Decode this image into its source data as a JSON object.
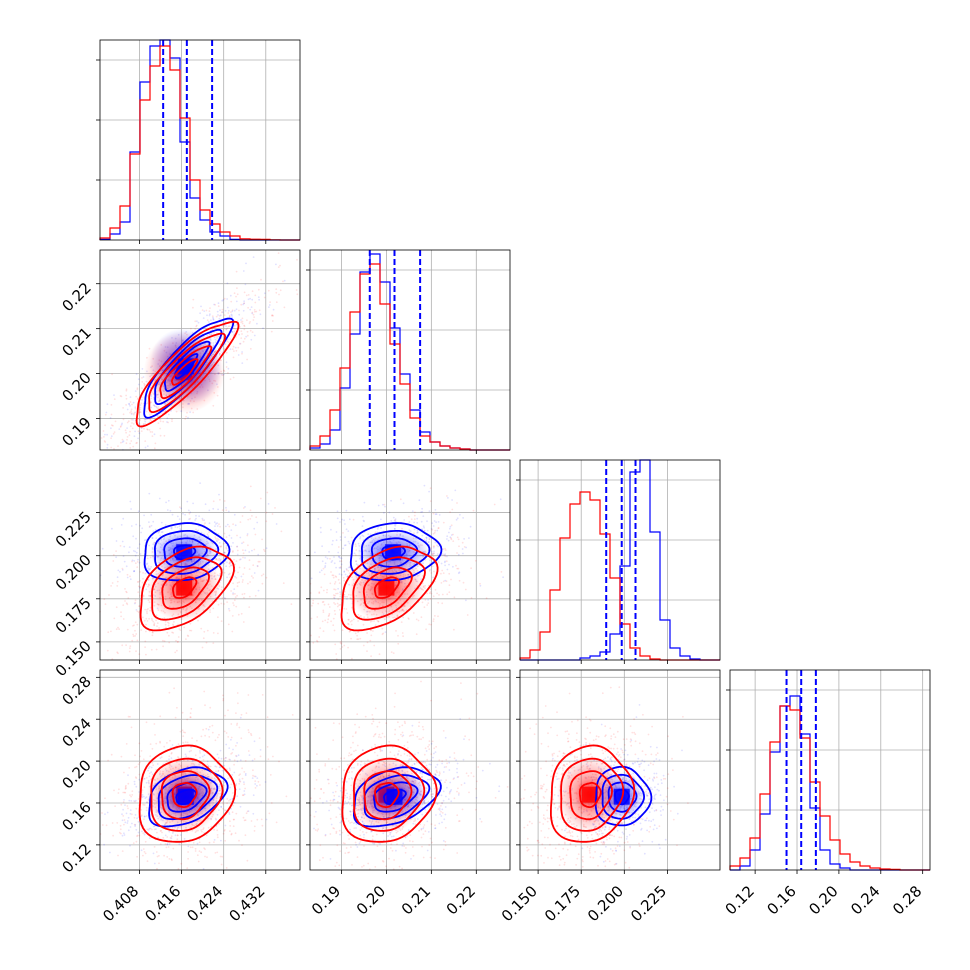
{
  "colors": {
    "blue": "#0000ff",
    "red": "#ff0000"
  },
  "chart_data": {
    "type": "corner",
    "title": "",
    "parameters": 4,
    "series": [
      {
        "color": "#0000ff"
      },
      {
        "color": "#ff0000"
      }
    ],
    "axes": [
      {
        "lim": [
          0.4005,
          0.4385
        ],
        "ticks": [
          0.408,
          0.416,
          0.424,
          0.432
        ],
        "tick_labels": [
          "0.408",
          "0.416",
          "0.424",
          "0.432"
        ]
      },
      {
        "lim": [
          0.183,
          0.2275
        ],
        "ticks": [
          0.19,
          0.2,
          0.21,
          0.22
        ],
        "tick_labels": [
          "0.19",
          "0.20",
          "0.21",
          "0.22"
        ]
      },
      {
        "lim": [
          0.1395,
          0.2555
        ],
        "ticks": [
          0.15,
          0.175,
          0.2,
          0.225
        ],
        "tick_labels": [
          "0.150",
          "0.175",
          "0.200",
          "0.225"
        ]
      },
      {
        "lim": [
          0.096,
          0.287
        ],
        "ticks": [
          0.12,
          0.16,
          0.2,
          0.24,
          0.28
        ],
        "tick_labels": [
          "0.12",
          "0.16",
          "0.20",
          "0.24",
          "0.28"
        ]
      }
    ],
    "marginals": [
      {
        "quantiles": [
          0.4125,
          0.417,
          0.4218
        ],
        "grid_ticks": [
          0.408,
          0.416,
          0.424,
          0.432
        ]
      },
      {
        "quantiles": [
          0.1963,
          0.2018,
          0.2075
        ],
        "grid_ticks": [
          0.19,
          0.2,
          0.21,
          0.22
        ]
      },
      {
        "quantiles": [
          0.1895,
          0.1985,
          0.2065
        ],
        "grid_ticks": [
          0.15,
          0.175,
          0.2,
          0.225
        ]
      },
      {
        "quantiles": [
          0.15,
          0.164,
          0.178
        ],
        "grid_ticks": [
          0.12,
          0.16,
          0.2,
          0.24,
          0.28
        ]
      }
    ],
    "histograms": [
      {
        "edges": [
          0.4005,
          0.4425
        ],
        "bins": 20,
        "blue": [
          0.003,
          0.03,
          0.09,
          0.44,
          0.79,
          0.97,
          1.0,
          0.91,
          0.49,
          0.21,
          0.1,
          0.04,
          0.02,
          0.003,
          0,
          0,
          0,
          0,
          0,
          0
        ],
        "red": [
          0.01,
          0.06,
          0.17,
          0.43,
          0.7,
          0.87,
          0.97,
          0.85,
          0.61,
          0.3,
          0.15,
          0.08,
          0.04,
          0.02,
          0.006,
          0.004,
          0.003,
          0.001,
          0,
          0
        ]
      },
      {
        "edges": [
          0.183,
          0.2275
        ],
        "bins": 20,
        "blue": [
          0.01,
          0.03,
          0.1,
          0.31,
          0.58,
          0.89,
          0.98,
          0.84,
          0.61,
          0.38,
          0.2,
          0.09,
          0.04,
          0.02,
          0.01,
          0.005,
          0,
          0,
          0,
          0
        ],
        "red": [
          0.02,
          0.07,
          0.2,
          0.41,
          0.69,
          0.88,
          0.93,
          0.73,
          0.53,
          0.33,
          0.16,
          0.07,
          0.04,
          0.02,
          0.01,
          0.005,
          0,
          0,
          0,
          0
        ]
      },
      {
        "edges": [
          0.1395,
          0.2555
        ],
        "bins": 20,
        "blue": [
          0,
          0,
          0,
          0,
          0,
          0,
          0.01,
          0.02,
          0.04,
          0.13,
          0.47,
          0.94,
          1.0,
          0.64,
          0.2,
          0.06,
          0.02,
          0.005,
          0,
          0
        ],
        "red": [
          0.01,
          0.05,
          0.14,
          0.35,
          0.61,
          0.78,
          0.84,
          0.8,
          0.63,
          0.41,
          0.18,
          0.06,
          0.02,
          0.005,
          0,
          0,
          0,
          0,
          0,
          0
        ]
      },
      {
        "edges": [
          0.096,
          0.287
        ],
        "bins": 20,
        "blue": [
          0,
          0.02,
          0.1,
          0.28,
          0.59,
          0.82,
          0.87,
          0.68,
          0.31,
          0.1,
          0.03,
          0.01,
          0,
          0,
          0,
          0,
          0,
          0,
          0,
          0
        ],
        "red": [
          0.02,
          0.06,
          0.16,
          0.38,
          0.64,
          0.82,
          0.8,
          0.66,
          0.44,
          0.27,
          0.15,
          0.08,
          0.04,
          0.02,
          0.01,
          0.005,
          0.003,
          0,
          0,
          0
        ]
      }
    ],
    "contours": [
      {
        "row": 1,
        "col": 0,
        "blue": {
          "center": [
            0.4168,
            0.2016
          ],
          "sd": [
            0.0042,
            0.0054
          ],
          "corr": 0.86
        },
        "red": {
          "center": [
            0.4165,
            0.2003
          ],
          "sd": [
            0.0048,
            0.0057
          ],
          "corr": 0.86
        }
      },
      {
        "row": 2,
        "col": 0,
        "blue": {
          "center": [
            0.4165,
            0.202
          ],
          "sd": [
            0.004,
            0.0083
          ],
          "corr": 0.1
        },
        "red": {
          "center": [
            0.4165,
            0.1815
          ],
          "sd": [
            0.0044,
            0.012
          ],
          "corr": 0.45
        }
      },
      {
        "row": 2,
        "col": 1,
        "blue": {
          "center": [
            0.2015,
            0.202
          ],
          "sd": [
            0.005,
            0.0083
          ],
          "corr": 0.1
        },
        "red": {
          "center": [
            0.2,
            0.1815
          ],
          "sd": [
            0.0053,
            0.012
          ],
          "corr": 0.45
        }
      },
      {
        "row": 3,
        "col": 0,
        "blue": {
          "center": [
            0.4168,
            0.166
          ],
          "sd": [
            0.0037,
            0.014
          ],
          "corr": 0.35
        },
        "red": {
          "center": [
            0.4165,
            0.168
          ],
          "sd": [
            0.0045,
            0.023
          ],
          "corr": 0.1
        }
      },
      {
        "row": 3,
        "col": 1,
        "blue": {
          "center": [
            0.2018,
            0.166
          ],
          "sd": [
            0.0048,
            0.014
          ],
          "corr": 0.35
        },
        "red": {
          "center": [
            0.2,
            0.168
          ],
          "sd": [
            0.0052,
            0.023
          ],
          "corr": 0.1
        }
      },
      {
        "row": 3,
        "col": 2,
        "blue": {
          "center": [
            0.1985,
            0.166
          ],
          "sd": [
            0.008,
            0.014
          ],
          "corr": 0.0
        },
        "red": {
          "center": [
            0.18,
            0.168
          ],
          "sd": [
            0.012,
            0.023
          ],
          "corr": 0.1
        }
      }
    ]
  }
}
